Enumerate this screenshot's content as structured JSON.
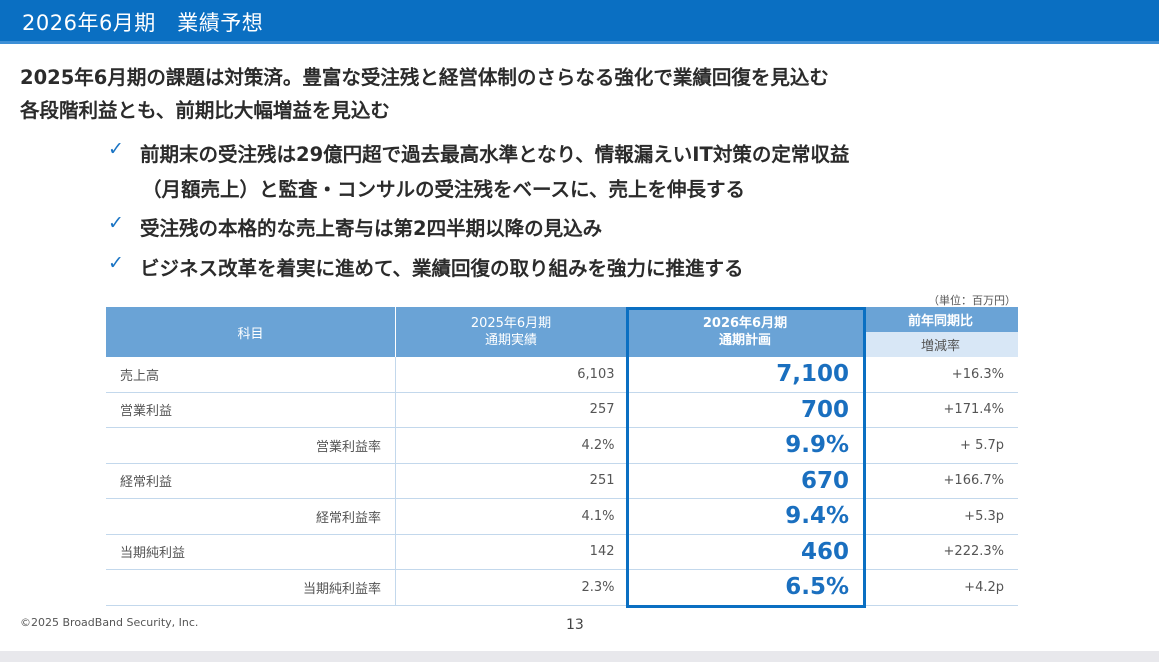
{
  "header": {
    "title": "2026年6月期　業績予想"
  },
  "lead": [
    "2025年6月期の課題は対策済。豊富な受注残と経営体制のさらなる強化で業績回復を見込む",
    "各段階利益とも、前期比大幅増益を見込む"
  ],
  "bullets": [
    {
      "icon": "check-icon",
      "line1": "前期末の受注残は29億円超で過去最高水準となり、情報漏えいIT対策の定常収益",
      "line2": "（月額売上）と監査・コンサルの受注残をベースに、売上を伸長する"
    },
    {
      "icon": "check-icon",
      "line1": "受注残の本格的な売上寄与は第2四半期以降の見込み"
    },
    {
      "icon": "check-icon",
      "line1": "ビジネス改革を着実に進めて、業績回復の取り組みを強力に推進する"
    }
  ],
  "check_glyph": "✓",
  "table": {
    "unit": "（単位：百万円）",
    "headers": {
      "subject": "科目",
      "prev_l1": "2025年6月期",
      "prev_l2": "通期実績",
      "plan_l1": "2026年6月期",
      "plan_l2": "通期計画",
      "yoy_l1": "前年同期比",
      "yoy_l2": "増減率"
    },
    "rows": [
      {
        "subject": "売上高",
        "prev": "6,103",
        "plan": "7,100",
        "yoy": "+16.3%"
      },
      {
        "subject": "営業利益",
        "prev": "257",
        "plan": "700",
        "yoy": "+171.4%"
      },
      {
        "subject": "営業利益率",
        "prev": "4.2%",
        "plan": "9.9%",
        "yoy": "+ 5.7p"
      },
      {
        "subject": "経常利益",
        "prev": "251",
        "plan": "670",
        "yoy": "+166.7%"
      },
      {
        "subject": "経常利益率",
        "prev": "4.1%",
        "plan": "9.4%",
        "yoy": "+5.3p"
      },
      {
        "subject": "当期純利益",
        "prev": "142",
        "plan": "460",
        "yoy": "+222.3%"
      },
      {
        "subject": "当期純利益率",
        "prev": "2.3%",
        "plan": "6.5%",
        "yoy": "+4.2p"
      }
    ]
  },
  "footer": {
    "copyright": "©2025 BroadBand Security, Inc.",
    "page": "13"
  },
  "colors": {
    "brand_blue": "#0a6fc2",
    "header_cell": "#6aa3d6",
    "plan_text": "#1a6fbf"
  }
}
